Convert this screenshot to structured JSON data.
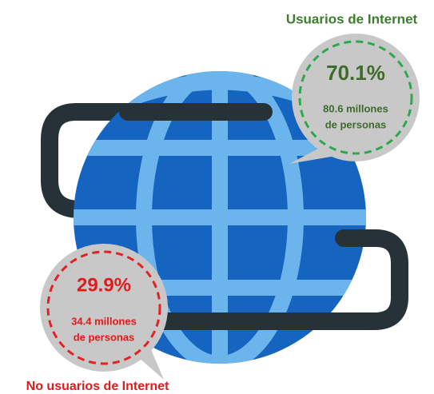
{
  "callouts": [
    {
      "title": "Usuarios de Internet",
      "percent": "70.1%",
      "lines": [
        "80.6 millones",
        "de personas"
      ]
    },
    {
      "title": "No usuarios de Internet",
      "percent": "29.9%",
      "lines": [
        "34.4 millones",
        "de personas"
      ]
    }
  ]
}
